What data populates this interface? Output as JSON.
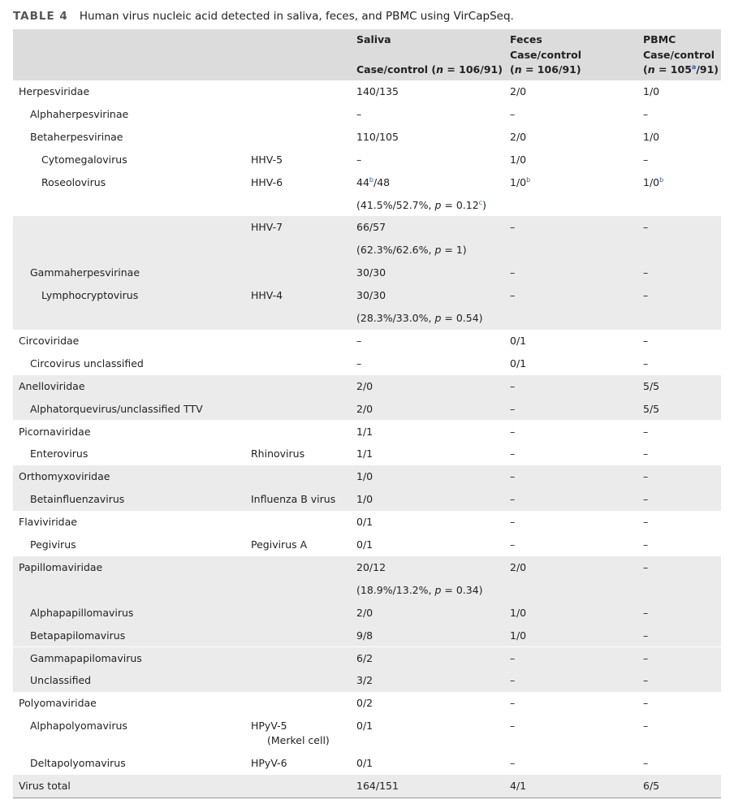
{
  "title": {
    "label": "TABLE 4",
    "text": "Human virus nucleic acid detected in saliva, feces, and PBMC using VirCapSeq."
  },
  "table": {
    "header": [
      null,
      null,
      [
        [
          {
            "t": "Saliva"
          }
        ],
        null,
        [
          {
            "t": "Case/control ("
          },
          {
            "i": "n"
          },
          {
            "t": " = 106/91)"
          }
        ]
      ],
      [
        [
          {
            "t": "Feces"
          }
        ],
        [
          {
            "t": "Case/control"
          }
        ],
        [
          {
            "t": "("
          },
          {
            "i": "n"
          },
          {
            "t": " = 106/91)"
          }
        ]
      ],
      [
        [
          {
            "t": "PBMC"
          }
        ],
        [
          {
            "t": "Case/control"
          }
        ],
        [
          {
            "t": "("
          },
          {
            "i": "n"
          },
          {
            "t": " = 105"
          },
          {
            "sup": "a"
          },
          {
            "t": "/91)"
          }
        ]
      ]
    ],
    "rows": [
      [
        "Herpesviridae",
        null,
        "140/135",
        "2/0",
        "1/0"
      ],
      [
        "Alphaherpesvirinae",
        null,
        "–",
        "–",
        "–"
      ],
      [
        "Betaherpesvirinae",
        null,
        "110/105",
        "2/0",
        "1/0"
      ],
      [
        "Cytomegalovirus",
        "HHV-5",
        "–",
        "1/0",
        "–"
      ],
      [
        "Roseolovirus",
        "HHV-6",
        [
          {
            "t": "44"
          },
          {
            "sup": "b"
          },
          {
            "t": "/48"
          }
        ],
        [
          {
            "t": "1/0"
          },
          {
            "sup": "b"
          }
        ],
        [
          {
            "t": "1/0"
          },
          {
            "sup": "b"
          }
        ]
      ],
      [
        null,
        null,
        [
          {
            "t": "(41.5%/52.7%, "
          },
          {
            "i": "p"
          },
          {
            "t": " = 0.12"
          },
          {
            "sup": "c"
          },
          {
            "t": ")"
          }
        ],
        null,
        null
      ],
      [
        null,
        "HHV-7",
        "66/57",
        "–",
        "–"
      ],
      [
        null,
        null,
        [
          {
            "t": "(62.3%/62.6%, "
          },
          {
            "i": "p"
          },
          {
            "t": " = 1)"
          }
        ],
        null,
        null
      ],
      [
        "Gammaherpesvirinae",
        null,
        "30/30",
        "–",
        "–"
      ],
      [
        "Lymphocryptovirus",
        "HHV-4",
        "30/30",
        "–",
        "–"
      ],
      [
        null,
        null,
        [
          {
            "t": "(28.3%/33.0%, "
          },
          {
            "i": "p"
          },
          {
            "t": " = 0.54)"
          }
        ],
        null,
        null
      ],
      [
        "Circoviridae",
        null,
        "–",
        "0/1",
        "–"
      ],
      [
        "Circovirus unclassified",
        null,
        "–",
        "0/1",
        "–"
      ],
      [
        "Anelloviridae",
        null,
        "2/0",
        "–",
        "5/5"
      ],
      [
        "Alphatorquevirus/unclassified TTV",
        null,
        "2/0",
        "–",
        "5/5"
      ],
      [
        "Picornaviridae",
        null,
        "1/1",
        "–",
        "–"
      ],
      [
        "Enterovirus",
        "Rhinovirus",
        "1/1",
        "–",
        "–"
      ],
      [
        "Orthomyxoviridae",
        null,
        "1/0",
        "–",
        "–"
      ],
      [
        "Betainfluenzavirus",
        "Influenza B virus",
        "1/0",
        "–",
        "–"
      ],
      [
        "Flaviviridae",
        null,
        "0/1",
        "–",
        "–"
      ],
      [
        "Pegivirus",
        "Pegivirus A",
        "0/1",
        "–",
        "–"
      ],
      [
        "Papillomaviridae",
        null,
        "20/12",
        "2/0",
        "–"
      ],
      [
        null,
        null,
        [
          {
            "t": "(18.9%/13.2%, "
          },
          {
            "i": "p"
          },
          {
            "t": " = 0.34)"
          }
        ],
        null,
        null
      ],
      [
        "Alphapapillomavirus",
        null,
        "2/0",
        "1/0",
        "–"
      ],
      [
        "Betapapilomavirus",
        null,
        "9/8",
        "1/0",
        "–"
      ],
      [
        "Gammapapilomavirus",
        null,
        "6/2",
        "–",
        "–"
      ],
      [
        "Unclassified",
        null,
        "3/2",
        "–",
        "–"
      ],
      [
        "Polyomaviridae",
        null,
        "0/2",
        "–",
        "–"
      ],
      [
        "Alphapolyomavirus",
        [
          {
            "t": "HPyV-5"
          },
          {
            "br": "(Merkel cell)"
          }
        ],
        "0/1",
        "–",
        "–"
      ],
      [
        "Deltapolyomavirus",
        "HPyV-6",
        "0/1",
        "–",
        "–"
      ],
      [
        "Virus total",
        null,
        "164/151",
        "4/1",
        "6/5"
      ]
    ]
  }
}
